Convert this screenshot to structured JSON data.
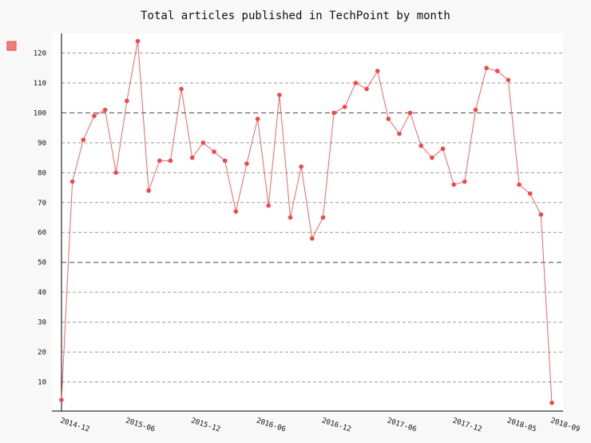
{
  "chart_data": {
    "type": "line",
    "title": "Total articles published in TechPoint by month",
    "xlabel": "",
    "ylabel": "",
    "ylim": [
      0,
      125
    ],
    "yticks": [
      10,
      20,
      30,
      40,
      50,
      60,
      70,
      80,
      90,
      100,
      110,
      120
    ],
    "major_grid_values": [
      50,
      100
    ],
    "x_tick_labels": [
      "2014-12",
      "2015-06",
      "2015-12",
      "2016-06",
      "2016-12",
      "2017-06",
      "2017-12",
      "2018-05",
      "2018-09"
    ],
    "x_tick_indices": [
      0,
      6,
      12,
      18,
      24,
      30,
      36,
      41,
      45
    ],
    "grid": true,
    "legend": "top-left",
    "series": [
      {
        "color": "#f04848",
        "values": [
          4,
          77,
          91,
          99,
          101,
          80,
          104,
          124,
          74,
          84,
          84,
          108,
          85,
          90,
          87,
          84,
          67,
          83,
          98,
          69,
          106,
          65,
          82,
          58,
          65,
          100,
          102,
          110,
          108,
          114,
          98,
          93,
          100,
          89,
          85,
          88,
          76,
          77,
          101,
          115,
          114,
          111,
          76,
          73,
          66,
          3
        ]
      }
    ]
  }
}
